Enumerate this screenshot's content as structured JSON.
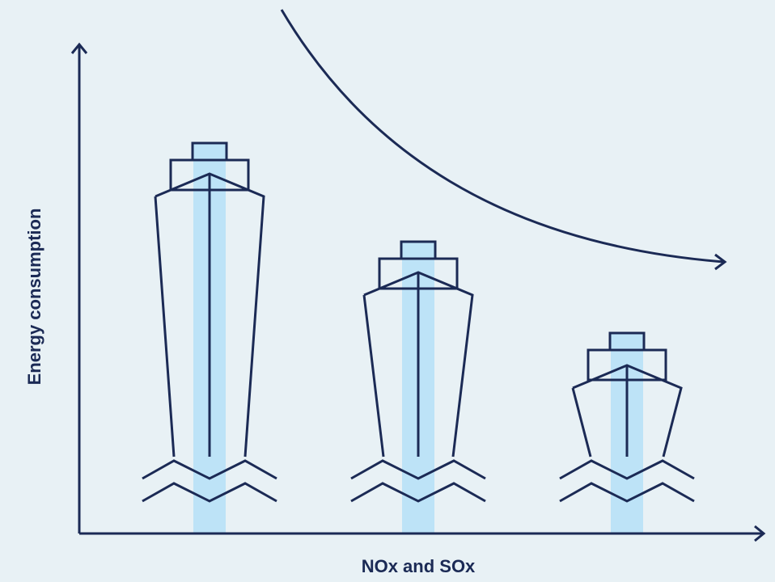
{
  "axes": {
    "y_label": "Energy consumption",
    "x_label": "NOx and SOx"
  }
}
